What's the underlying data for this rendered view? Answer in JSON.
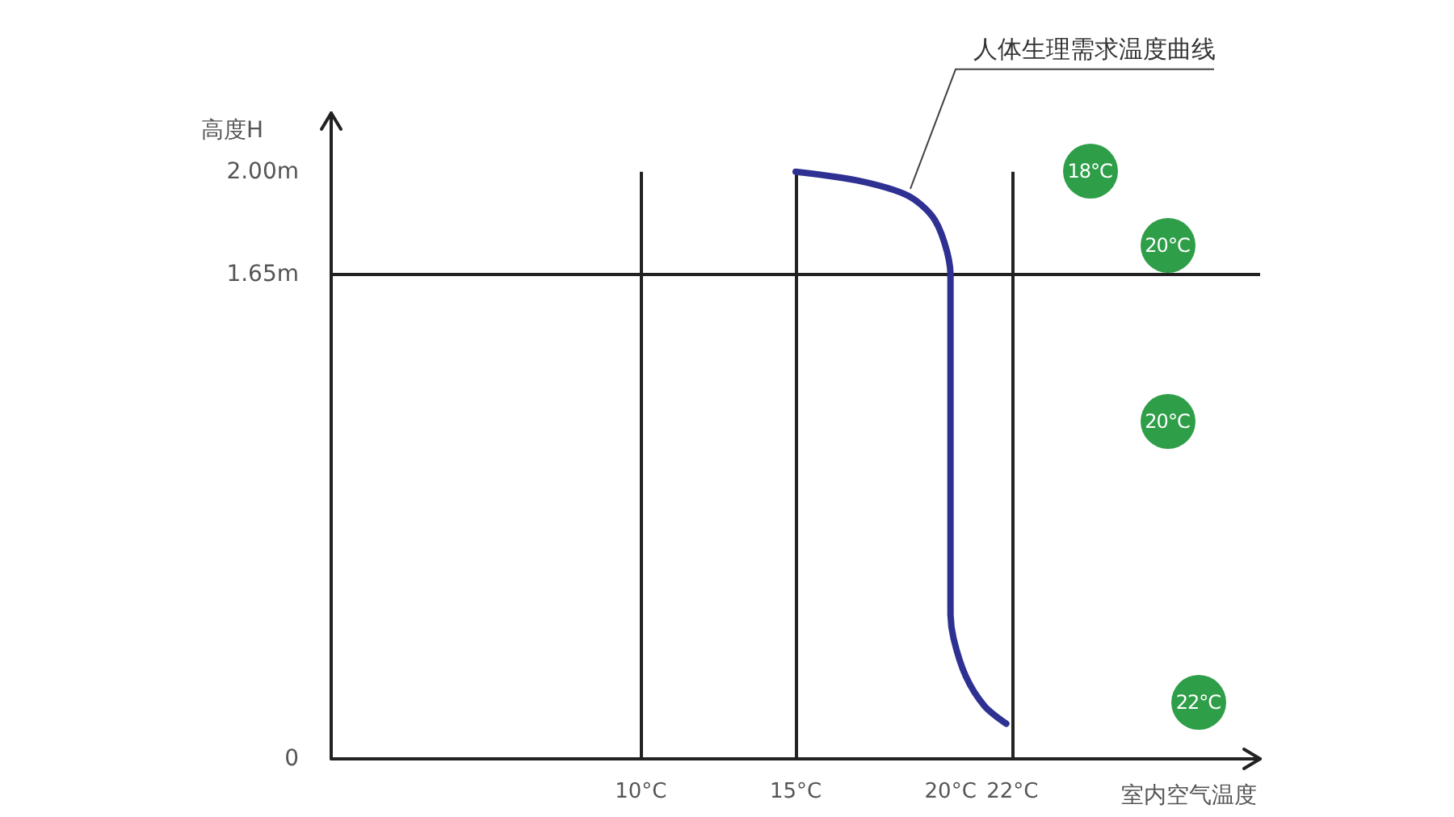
{
  "chart_data": {
    "type": "line",
    "xlabel": "室内空气温度",
    "ylabel": "高度H",
    "series": [
      {
        "name": "人体生理需求温度曲线",
        "color": "#2e3192",
        "x": [
          15,
          17,
          18.6,
          19.4,
          19.8,
          20,
          20,
          20.1,
          20.5,
          21.1,
          21.8
        ],
        "values": [
          2.0,
          1.97,
          1.92,
          1.85,
          1.76,
          1.65,
          0.5,
          0.41,
          0.28,
          0.18,
          0.12
        ]
      }
    ],
    "xlim": [
      0,
      30
    ],
    "xticks": [
      {
        "value": 10,
        "label": "10°C"
      },
      {
        "value": 15,
        "label": "15°C"
      },
      {
        "value": 20,
        "label": "20°C"
      },
      {
        "value": 22,
        "label": "22°C"
      }
    ],
    "ylim": [
      0,
      2.2
    ],
    "yticks": [
      0,
      {
        "value": 1.65,
        "label": "1.65m"
      },
      {
        "value": 2,
        "label": "2.00m"
      }
    ],
    "ref_lines": [
      {
        "axis": "x",
        "value": 10,
        "color": "#222222"
      },
      {
        "axis": "x",
        "value": 15,
        "color": "#222222"
      },
      {
        "axis": "x",
        "value": 22,
        "color": "#222222"
      },
      {
        "axis": "y",
        "value": 1.65,
        "color": "#222222"
      }
    ],
    "annotations": [
      {
        "text": "18°C",
        "x": 24.5,
        "y": 2.0
      },
      {
        "text": "20°C",
        "x": 27,
        "y": 1.75
      },
      {
        "text": "20°C",
        "x": 27,
        "y": 1.15
      },
      {
        "text": "22°C",
        "x": 28,
        "y": 0.19
      }
    ],
    "grid": false,
    "marker": "none",
    "line_style": "solid"
  }
}
